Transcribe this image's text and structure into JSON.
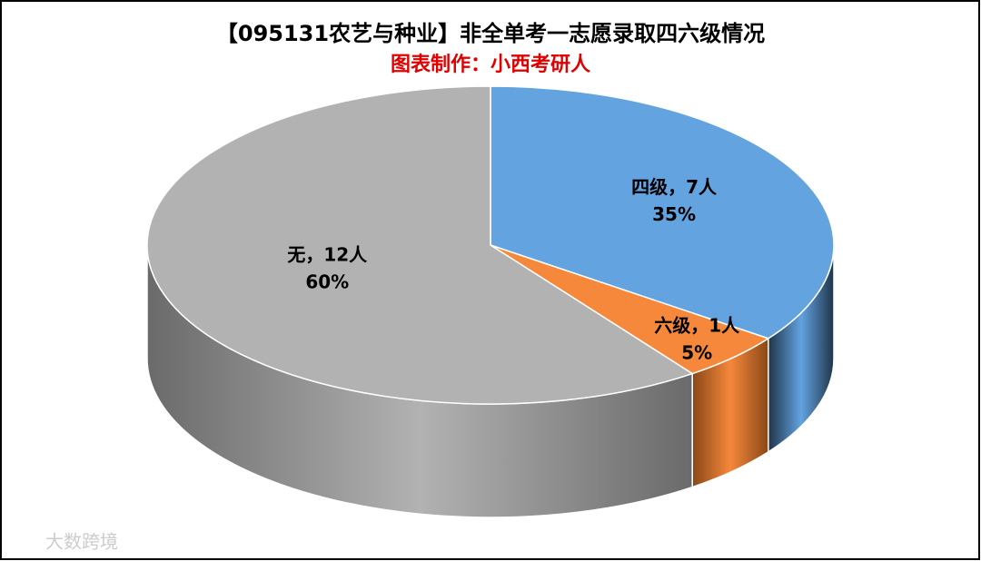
{
  "chart_data": {
    "type": "pie3d",
    "title": "【095131农艺与种业】非全单考一志愿录取四六级情况",
    "subtitle": "图表制作：小西考研人",
    "values": [
      7,
      1,
      12
    ],
    "value_labels": [
      "四级，7人",
      "六级，1人",
      "无，12人"
    ],
    "percents": [
      35,
      5,
      60
    ],
    "percent_labels": [
      "35%",
      "5%",
      "60%"
    ],
    "colors": [
      "#62a3e0",
      "#f5883b",
      "#b2b2b2"
    ],
    "side_colors": [
      "#1f3448",
      "#8a4718",
      "#6a6a6a"
    ]
  },
  "watermark": "大数跨境"
}
